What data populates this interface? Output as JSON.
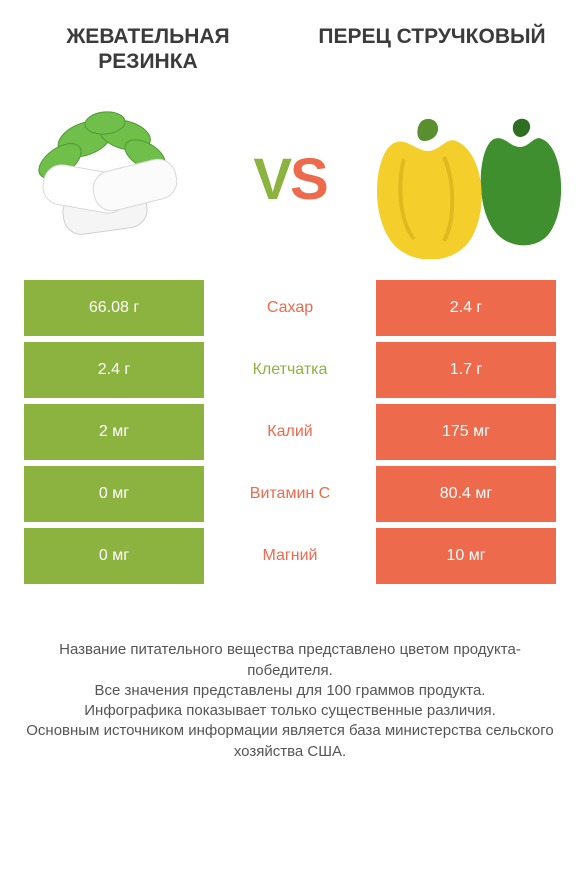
{
  "header": {
    "left_title": "ЖЕВАТЕЛЬНАЯ РЕЗИНКА",
    "right_title": "ПЕРЕЦ СТРУЧКОВЫЙ"
  },
  "vs": {
    "v": "V",
    "s": "S"
  },
  "colors": {
    "left": "#8cb23f",
    "right": "#ed6a4d",
    "mid_left": "#ed6a4d",
    "mid_right": "#8cb23f"
  },
  "rows": [
    {
      "left": "66.08 г",
      "label": "Сахар",
      "right": "2.4 г",
      "winner": "right"
    },
    {
      "left": "2.4 г",
      "label": "Клетчатка",
      "right": "1.7 г",
      "winner": "left"
    },
    {
      "left": "2 мг",
      "label": "Калий",
      "right": "175 мг",
      "winner": "right"
    },
    {
      "left": "0 мг",
      "label": "Витамин C",
      "right": "80.4 мг",
      "winner": "right"
    },
    {
      "left": "0 мг",
      "label": "Магний",
      "right": "10 мг",
      "winner": "right"
    }
  ],
  "footer": {
    "l1": "Название питательного вещества представлено цветом продукта-победителя.",
    "l2": "Все значения представлены для 100 граммов продукта.",
    "l3": "Инфографика показывает только существенные различия.",
    "l4": "Основным источником информации является база министерства сельского хозяйства США."
  }
}
